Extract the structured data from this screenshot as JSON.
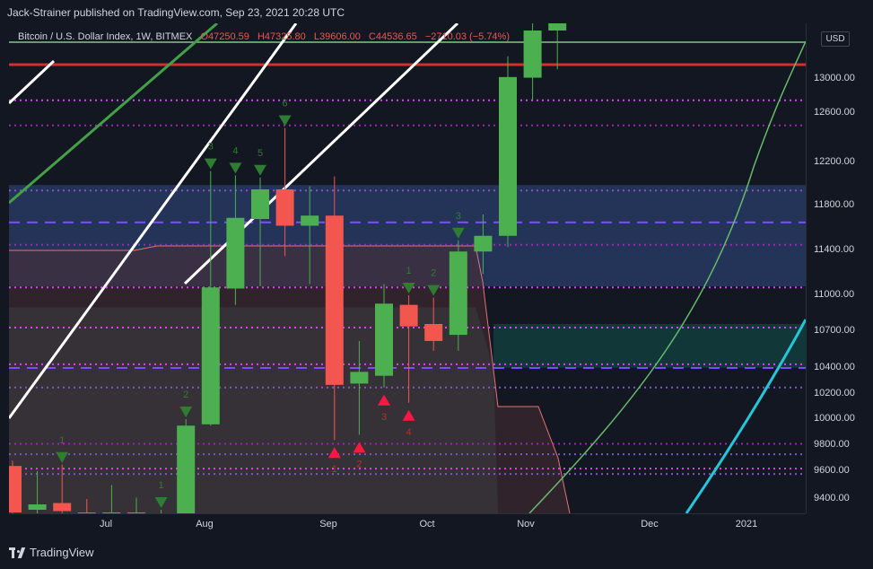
{
  "publisher": "Jack-Strainer published on TradingView.com, Sep 23, 2021 20:28 UTC",
  "legend": {
    "symbol": "Bitcoin / U.S. Dollar Index, 1W, BITMEX",
    "open": "O47250.59",
    "high": "H47325.80",
    "low": "L39606.00",
    "close": "C44536.65",
    "change": "−2710.03 (−5.74%)"
  },
  "currency": "USD",
  "brand": "TradingView",
  "colors": {
    "up": "#4caf50",
    "down": "#f2564f",
    "background": "#131722"
  },
  "chart_data": {
    "type": "candlestick",
    "title": "Bitcoin / U.S. Dollar Index, 1W, BITMEX",
    "y_ticks": [
      "13000.00",
      "12600.00",
      "12200.00",
      "11800.00",
      "11400.00",
      "11000.00",
      "10700.00",
      "10400.00",
      "10200.00",
      "10000.00",
      "9800.00",
      "9600.00",
      "9400.00"
    ],
    "x_ticks": [
      "Jul",
      "Aug",
      "Sep",
      "Oct",
      "Nov",
      "Dec",
      "2021"
    ],
    "ylim": [
      9300,
      13500
    ],
    "candles": [
      {
        "week": "Jun 1",
        "open": 9640,
        "high": 9680,
        "low": 9280,
        "close": 9300
      },
      {
        "week": "Jun 8",
        "open": 9320,
        "high": 9600,
        "low": 9250,
        "close": 9360
      },
      {
        "week": "Jun 15",
        "open": 9370,
        "high": 9650,
        "low": 9280,
        "close": 9310
      },
      {
        "week": "Jun 22",
        "open": 9300,
        "high": 9400,
        "low": 9200,
        "close": 9220
      },
      {
        "week": "Jun 29",
        "open": 9200,
        "high": 9500,
        "low": 9150,
        "close": 9300
      },
      {
        "week": "Jul 6",
        "open": 9260,
        "high": 9410,
        "low": 9200,
        "close": 9300
      },
      {
        "week": "Jul 13",
        "open": 9150,
        "high": 9320,
        "low": 9100,
        "close": 9280
      },
      {
        "week": "Jul 20",
        "open": 9260,
        "high": 10000,
        "low": 9200,
        "close": 9950
      },
      {
        "week": "Jul 27",
        "open": 9960,
        "high": 12120,
        "low": 9950,
        "close": 11070
      },
      {
        "week": "Aug 3",
        "open": 11060,
        "high": 12080,
        "low": 10920,
        "close": 11690
      },
      {
        "week": "Aug 10",
        "open": 11680,
        "high": 12060,
        "low": 11080,
        "close": 11950
      },
      {
        "week": "Aug 17",
        "open": 11950,
        "high": 12480,
        "low": 11350,
        "close": 11620
      },
      {
        "week": "Aug 24",
        "open": 11620,
        "high": 11980,
        "low": 11100,
        "close": 11710
      },
      {
        "week": "Aug 31",
        "open": 11710,
        "high": 12070,
        "low": 9840,
        "close": 10270
      },
      {
        "week": "Sep 7",
        "open": 10280,
        "high": 10620,
        "low": 9880,
        "close": 10370
      },
      {
        "week": "Sep 14",
        "open": 10340,
        "high": 11100,
        "low": 10250,
        "close": 10930
      },
      {
        "week": "Sep 21",
        "open": 10920,
        "high": 11000,
        "low": 10130,
        "close": 10740
      },
      {
        "week": "Sep 28",
        "open": 10760,
        "high": 10980,
        "low": 10540,
        "close": 10620
      },
      {
        "week": "Oct 5",
        "open": 10670,
        "high": 11490,
        "low": 10540,
        "close": 11390
      },
      {
        "week": "Oct 12",
        "open": 11390,
        "high": 11720,
        "low": 11190,
        "close": 11530
      },
      {
        "week": "Oct 19",
        "open": 11530,
        "high": 13350,
        "low": 11430,
        "close": 13030
      },
      {
        "week": "Oct 26",
        "open": 13020,
        "high": 13880,
        "low": 12750,
        "close": 13750
      },
      {
        "week": "Nov 2",
        "open": 13750,
        "high": 14100,
        "low": 13150,
        "close": 14000
      }
    ]
  },
  "signals": [
    {
      "label": "1",
      "color": "green",
      "candle": 2
    },
    {
      "label": "1",
      "color": "green",
      "candle": 6
    },
    {
      "label": "2",
      "color": "green",
      "candle": 7
    },
    {
      "label": "3",
      "color": "green",
      "candle": 8
    },
    {
      "label": "4",
      "color": "green",
      "candle": 9
    },
    {
      "label": "5",
      "color": "green",
      "candle": 10
    },
    {
      "label": "6",
      "color": "green",
      "candle": 11
    },
    {
      "label": "1",
      "color": "green",
      "candle": 16
    },
    {
      "label": "2",
      "color": "green",
      "candle": 17
    },
    {
      "label": "3",
      "color": "green",
      "candle": 18
    },
    {
      "label": "1",
      "color": "red",
      "candle": 13
    },
    {
      "label": "2",
      "color": "red",
      "candle": 14
    },
    {
      "label": "3",
      "color": "red",
      "candle": 15
    },
    {
      "label": "4",
      "color": "red",
      "candle": 16
    }
  ]
}
